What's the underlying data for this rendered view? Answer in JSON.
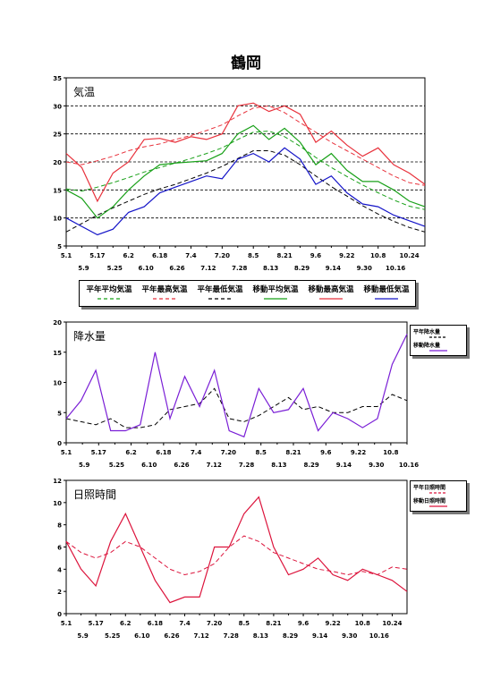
{
  "title": "鶴岡",
  "colors": {
    "red": "#e8323c",
    "green": "#18a018",
    "blue": "#1414c8",
    "purple": "#7a1fd6",
    "crimson": "#dc143c",
    "black": "#000000"
  },
  "chart_data": [
    {
      "type": "line",
      "label": "気温",
      "ylim": [
        5,
        35
      ],
      "yticks": [
        "5",
        "10",
        "15",
        "20",
        "25",
        "30",
        "35"
      ],
      "xticks_top": [
        "5.1",
        "5.17",
        "6.2",
        "6.18",
        "7.4",
        "7.20",
        "8.5",
        "8.21",
        "9.6",
        "9.22",
        "10.8",
        "10.24"
      ],
      "xticks_bottom": [
        "5.9",
        "5.25",
        "6.10",
        "6.26",
        "7.12",
        "7.28",
        "8.13",
        "8.29",
        "9.14",
        "9.30",
        "10.16"
      ],
      "grid": "horizontal-dashed",
      "x": [
        "5.1",
        "5.9",
        "5.17",
        "5.25",
        "6.2",
        "6.10",
        "6.18",
        "6.26",
        "7.4",
        "7.12",
        "7.20",
        "7.28",
        "8.5",
        "8.13",
        "8.21",
        "8.29",
        "9.6",
        "9.14",
        "9.22",
        "9.30",
        "10.8",
        "10.16",
        "10.24",
        "11.1"
      ],
      "series": [
        {
          "name": "平年平均気温",
          "style": "dashed",
          "color": "green",
          "values": [
            15.2,
            14.8,
            15.5,
            16.3,
            17.2,
            18.2,
            19.0,
            19.8,
            20.6,
            21.5,
            22.5,
            24.0,
            25.3,
            25.5,
            24.5,
            22.8,
            20.8,
            19.0,
            17.4,
            15.9,
            14.5,
            13.2,
            12.1,
            11.5
          ]
        },
        {
          "name": "平年最高気温",
          "style": "dashed",
          "color": "red",
          "values": [
            20.0,
            19.5,
            20.2,
            21.0,
            22.0,
            22.7,
            23.2,
            24.0,
            24.7,
            25.6,
            26.6,
            28.2,
            29.6,
            30.0,
            28.8,
            27.0,
            25.3,
            23.5,
            22.0,
            20.5,
            19.0,
            17.5,
            16.3,
            15.8
          ]
        },
        {
          "name": "平年最低気温",
          "style": "dashed",
          "color": "black",
          "values": [
            7.5,
            9.0,
            10.5,
            11.8,
            13.0,
            14.2,
            15.2,
            16.0,
            17.0,
            18.0,
            19.2,
            20.6,
            22.0,
            22.0,
            21.2,
            19.5,
            17.5,
            15.6,
            13.9,
            12.2,
            10.7,
            9.4,
            8.3,
            7.5
          ]
        },
        {
          "name": "移動平均気温",
          "style": "solid",
          "color": "green",
          "values": [
            15.0,
            13.5,
            10.0,
            12.0,
            15.0,
            17.5,
            19.5,
            19.8,
            20.0,
            20.2,
            21.5,
            25.0,
            26.5,
            24.0,
            26.0,
            23.5,
            19.5,
            21.5,
            18.5,
            16.5,
            16.5,
            15.0,
            13.0,
            12.0
          ]
        },
        {
          "name": "移動最高気温",
          "style": "solid",
          "color": "red",
          "values": [
            21.5,
            19.0,
            13.0,
            18.0,
            20.0,
            24.0,
            24.2,
            23.5,
            24.5,
            24.0,
            25.0,
            30.0,
            30.5,
            29.0,
            30.0,
            28.5,
            23.5,
            25.5,
            23.0,
            21.0,
            22.5,
            19.5,
            18.0,
            16.0
          ]
        },
        {
          "name": "移動最低気温",
          "style": "solid",
          "color": "blue",
          "values": [
            10.0,
            8.5,
            7.0,
            8.0,
            11.0,
            12.0,
            14.5,
            15.5,
            16.5,
            17.5,
            17.0,
            20.5,
            21.5,
            20.0,
            22.5,
            20.5,
            16.0,
            17.5,
            14.5,
            12.5,
            12.0,
            10.5,
            9.5,
            8.5
          ]
        }
      ]
    },
    {
      "type": "line",
      "label": "降水量",
      "ylim": [
        0,
        20
      ],
      "yticks": [
        "0",
        "5",
        "10",
        "15",
        "20"
      ],
      "xticks_top": [
        "5.1",
        "5.17",
        "6.2",
        "6.18",
        "7.4",
        "7.20",
        "8.5",
        "8.21",
        "9.6",
        "9.22",
        "10.8"
      ],
      "xticks_bottom": [
        "5.9",
        "5.25",
        "6.10",
        "6.26",
        "7.12",
        "7.28",
        "8.13",
        "8.29",
        "9.14",
        "9.30",
        "10.16"
      ],
      "x": [
        "5.1",
        "5.9",
        "5.17",
        "5.25",
        "6.2",
        "6.10",
        "6.18",
        "6.26",
        "7.4",
        "7.12",
        "7.20",
        "7.28",
        "8.5",
        "8.13",
        "8.21",
        "8.29",
        "9.6",
        "9.14",
        "9.22",
        "9.30",
        "10.8",
        "10.16",
        "10.24",
        "11.1"
      ],
      "series": [
        {
          "name": "平年降水量",
          "style": "dashed",
          "color": "black",
          "values": [
            4.0,
            3.5,
            3.0,
            4.0,
            2.5,
            2.5,
            3.0,
            5.5,
            6.0,
            6.5,
            9.0,
            4.0,
            3.5,
            4.5,
            6.0,
            7.5,
            5.5,
            6.0,
            5.0,
            5.0,
            6.0,
            6.0,
            8.0,
            7.0
          ]
        },
        {
          "name": "移動降水量",
          "style": "solid",
          "color": "purple",
          "values": [
            4.0,
            7.0,
            12.0,
            2.0,
            2.0,
            3.0,
            15.0,
            4.0,
            11.0,
            6.0,
            12.0,
            2.0,
            1.0,
            9.0,
            5.0,
            5.5,
            9.0,
            2.0,
            5.0,
            4.0,
            2.5,
            4.0,
            13.0,
            18.0
          ]
        }
      ]
    },
    {
      "type": "line",
      "label": "日照時間",
      "ylim": [
        0,
        12
      ],
      "yticks": [
        "0",
        "2",
        "4",
        "6",
        "8",
        "10",
        "12"
      ],
      "xticks_top": [
        "5.1",
        "5.17",
        "6.2",
        "6.18",
        "7.4",
        "7.20",
        "8.5",
        "8.21",
        "9.6",
        "9.22",
        "10.8",
        "10.24"
      ],
      "xticks_bottom": [
        "5.9",
        "5.25",
        "6.10",
        "6.26",
        "7.12",
        "7.28",
        "8.13",
        "8.29",
        "9.14",
        "9.30",
        "10.16"
      ],
      "x": [
        "5.1",
        "5.9",
        "5.17",
        "5.25",
        "6.2",
        "6.10",
        "6.18",
        "6.26",
        "7.4",
        "7.12",
        "7.20",
        "7.28",
        "8.5",
        "8.13",
        "8.21",
        "8.29",
        "9.6",
        "9.14",
        "9.22",
        "9.30",
        "10.8",
        "10.16",
        "10.24",
        "11.1"
      ],
      "series": [
        {
          "name": "平年日照時間",
          "style": "dashed",
          "color": "crimson",
          "values": [
            6.5,
            5.5,
            5.0,
            5.5,
            6.5,
            6.0,
            5.0,
            4.0,
            3.5,
            3.8,
            4.5,
            6.0,
            7.0,
            6.5,
            5.5,
            5.0,
            4.5,
            4.0,
            3.8,
            3.5,
            3.8,
            3.5,
            4.2,
            4.0
          ]
        },
        {
          "name": "移動日照時間",
          "style": "solid",
          "color": "crimson",
          "values": [
            6.5,
            4.0,
            2.5,
            6.5,
            9.0,
            6.0,
            3.0,
            1.0,
            1.5,
            1.5,
            6.0,
            6.0,
            9.0,
            10.5,
            6.0,
            3.5,
            4.0,
            5.0,
            3.5,
            3.0,
            4.0,
            3.5,
            3.0,
            2.0
          ]
        }
      ]
    }
  ]
}
